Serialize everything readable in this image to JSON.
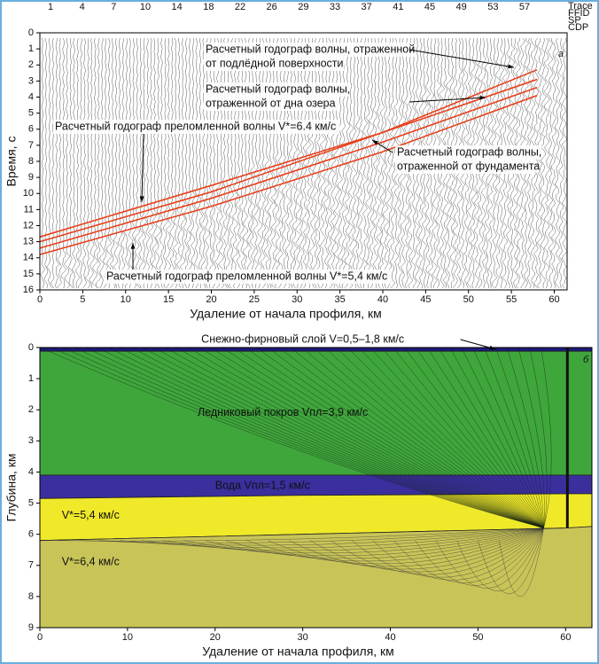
{
  "chart_data": [
    {
      "type": "line",
      "panel_label": "а",
      "header_labels": [
        "1",
        "4",
        "7",
        "10",
        "14",
        "18",
        "22",
        "26",
        "29",
        "33",
        "37",
        "41",
        "45",
        "49",
        "53",
        "57"
      ],
      "header_rows": [
        "Trace",
        "FFID",
        "SP",
        "CDP"
      ],
      "x_label": "Удаление от начала профиля, км",
      "y_label": "Время, с",
      "xlim": [
        0,
        61.5
      ],
      "xticks": [
        0,
        5,
        10,
        15,
        20,
        25,
        30,
        35,
        40,
        45,
        50,
        55,
        60
      ],
      "ylim": [
        0,
        16
      ],
      "yticks": [
        0,
        1,
        2,
        3,
        4,
        5,
        6,
        7,
        8,
        9,
        10,
        11,
        12,
        13,
        14,
        15,
        16
      ],
      "y_inverted": true,
      "series": [
        {
          "color": "#e8401c",
          "x": [
            0,
            20,
            40,
            58
          ],
          "values": [
            12.7,
            9.5,
            6.2,
            2.9
          ]
        },
        {
          "color": "#e8401c",
          "x": [
            0,
            20,
            40,
            58
          ],
          "values": [
            13.0,
            9.9,
            6.2,
            2.3
          ]
        },
        {
          "color": "#e8401c",
          "x": [
            0,
            20,
            40,
            58
          ],
          "values": [
            13.4,
            10.3,
            6.8,
            3.4
          ]
        },
        {
          "color": "#e8401c",
          "x": [
            0,
            20,
            40,
            58
          ],
          "values": [
            13.8,
            10.8,
            7.4,
            3.9
          ]
        }
      ],
      "annotations": [
        {
          "lines": [
            "Расчетный годограф волны, отраженной",
            "от подлёдной поверхности"
          ]
        },
        {
          "lines": [
            "Расчетный годограф волны,",
            "отраженной от дна озера"
          ]
        },
        {
          "lines": [
            "Расчетный годограф преломленной волны V*=6.4 км/с"
          ]
        },
        {
          "lines": [
            "Расчетный годограф волны,",
            "отраженной от фундамента"
          ]
        },
        {
          "lines": [
            "Расчетный годограф преломленной волны V*=5,4 км/с"
          ]
        }
      ]
    },
    {
      "type": "layers",
      "panel_label": "б",
      "x_label": "Удаление от начала профиля, км",
      "y_label": "Глубина, км",
      "xlim": [
        0,
        63
      ],
      "xticks": [
        0,
        10,
        20,
        30,
        40,
        50,
        60
      ],
      "ylim": [
        0,
        9
      ],
      "yticks": [
        0,
        1,
        2,
        3,
        4,
        5,
        6,
        7,
        8,
        9
      ],
      "y_inverted": true,
      "layers": [
        {
          "label": "Снежно-фирновый слой V=0,5–1,8 км/с",
          "color": "#1c1a7a",
          "x": [
            0,
            63
          ],
          "bottom": [
            0.12,
            0.12
          ]
        },
        {
          "label": "Ледниковый покров Vпл=3,9 км/с",
          "color": "#3fa63c",
          "x": [
            0,
            63
          ],
          "bottom": [
            4.1,
            4.1
          ]
        },
        {
          "label": "Вода Vпл=1,5 км/с",
          "color": "#3b2f9e",
          "x": [
            0,
            30,
            60,
            63
          ],
          "bottom": [
            4.85,
            4.75,
            4.7,
            4.7
          ]
        },
        {
          "label": "V*=5,4 км/с",
          "color": "#f0e92a",
          "x": [
            0,
            60,
            63
          ],
          "bottom": [
            6.2,
            5.8,
            5.75
          ]
        },
        {
          "label": "V*=6,4 км/с",
          "color": "#c9c458",
          "x": [
            0,
            63
          ],
          "bottom": [
            9,
            9
          ]
        }
      ]
    }
  ]
}
